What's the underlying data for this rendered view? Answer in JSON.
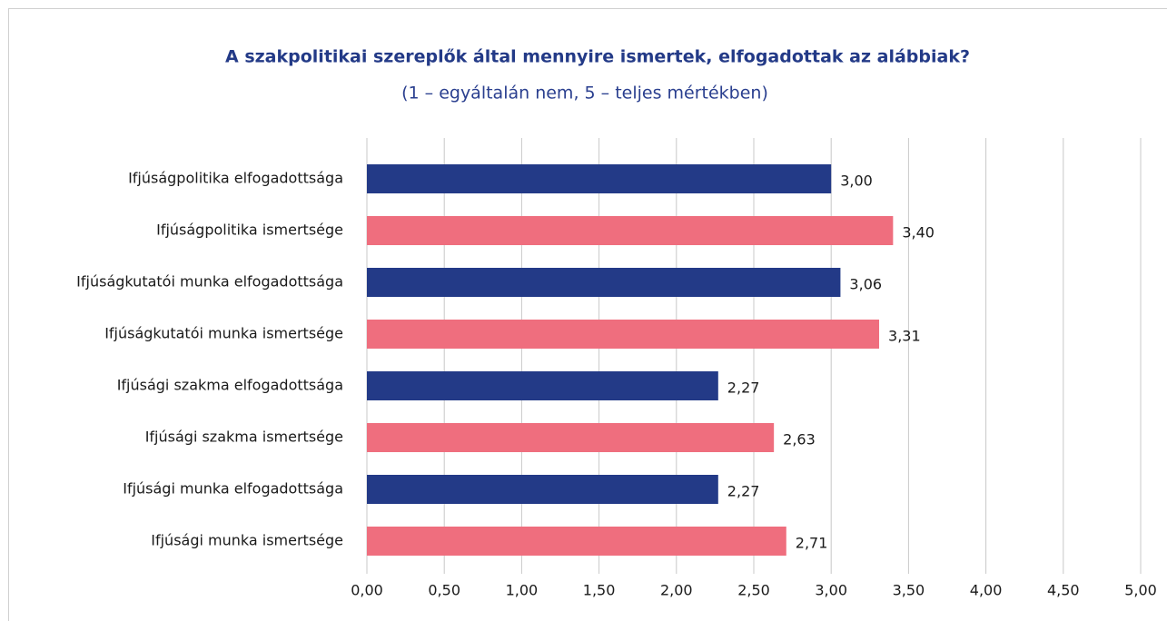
{
  "chart_data": {
    "type": "bar",
    "orientation": "horizontal",
    "title": "A szakpolitikai szereplők által mennyire  ismertek, elfogadottak az alábbiak?",
    "subtitle": "(1 – egyáltalán nem, 5 – teljes mértékben)",
    "categories": [
      "Ifjúságpolitika elfogadottsága",
      "Ifjúságpolitika ismertsége",
      "Ifjúságkutatói munka elfogadottsága",
      "Ifjúságkutatói munka ismertsége",
      "Ifjúsági szakma elfogadottsága",
      "Ifjúsági szakma ismertsége",
      "Ifjúsági munka elfogadottsága",
      "Ifjúsági munka ismertsége"
    ],
    "values": [
      3.0,
      3.4,
      3.06,
      3.31,
      2.27,
      2.63,
      2.27,
      2.71
    ],
    "value_labels": [
      "3,00",
      "3,40",
      "3,06",
      "3,31",
      "2,27",
      "2,63",
      "2,27",
      "2,71"
    ],
    "colors": [
      "#233a87",
      "#ef6e7e",
      "#233a87",
      "#ef6e7e",
      "#233a87",
      "#ef6e7e",
      "#233a87",
      "#ef6e7e"
    ],
    "xlim": [
      0,
      5
    ],
    "xticks": [
      {
        "value": 0,
        "label": "0,00"
      },
      {
        "value": 0.5,
        "label": "0,50"
      },
      {
        "value": 1,
        "label": "1,00"
      },
      {
        "value": 1.5,
        "label": "1,50"
      },
      {
        "value": 2,
        "label": "2,00"
      },
      {
        "value": 2.5,
        "label": "2,50"
      },
      {
        "value": 3,
        "label": "3,00"
      },
      {
        "value": 3.5,
        "label": "3,50"
      },
      {
        "value": 4,
        "label": "4,00"
      },
      {
        "value": 4.5,
        "label": "4,50"
      },
      {
        "value": 5,
        "label": "5,00"
      }
    ],
    "grid": true
  }
}
